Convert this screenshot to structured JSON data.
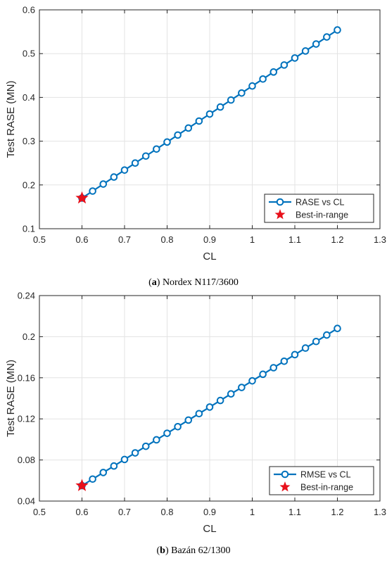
{
  "chart_data": [
    {
      "type": "line",
      "xlabel": "CL",
      "ylabel": "Test RASE (MN)",
      "xlim": [
        0.5,
        1.3
      ],
      "ylim": [
        0.1,
        0.6
      ],
      "xticks": [
        0.5,
        0.6,
        0.7,
        0.8,
        0.9,
        1,
        1.1,
        1.2,
        1.3
      ],
      "xtick_labels": [
        "0.5",
        "0.6",
        "0.7",
        "0.8",
        "0.9",
        "1",
        "1.1",
        "1.2",
        "1.3"
      ],
      "yticks": [
        0.1,
        0.2,
        0.3,
        0.4,
        0.5,
        0.6
      ],
      "ytick_labels": [
        "0.1",
        "0.2",
        "0.3",
        "0.4",
        "0.5",
        "0.6"
      ],
      "grid": true,
      "legend_position": "bottom-right",
      "series": [
        {
          "name": "RASE vs CL",
          "marker": "circle",
          "color": "#0072BD",
          "x": [
            0.6,
            0.625,
            0.65,
            0.675,
            0.7,
            0.725,
            0.75,
            0.775,
            0.8,
            0.825,
            0.85,
            0.875,
            0.9,
            0.925,
            0.95,
            0.975,
            1.0,
            1.025,
            1.05,
            1.075,
            1.1,
            1.125,
            1.15,
            1.175,
            1.2
          ],
          "y": [
            0.17,
            0.186,
            0.202,
            0.218,
            0.234,
            0.25,
            0.266,
            0.282,
            0.298,
            0.314,
            0.33,
            0.346,
            0.362,
            0.378,
            0.394,
            0.41,
            0.426,
            0.442,
            0.458,
            0.474,
            0.49,
            0.506,
            0.522,
            0.538,
            0.554
          ]
        },
        {
          "name": "Best-in-range",
          "marker": "star",
          "color": "#E8101A",
          "x": [
            0.6
          ],
          "y": [
            0.17
          ]
        }
      ]
    },
    {
      "type": "line",
      "xlabel": "CL",
      "ylabel": "Test RASE (MN)",
      "xlim": [
        0.5,
        1.3
      ],
      "ylim": [
        0.04,
        0.24
      ],
      "xticks": [
        0.5,
        0.6,
        0.7,
        0.8,
        0.9,
        1,
        1.1,
        1.2,
        1.3
      ],
      "xtick_labels": [
        "0.5",
        "0.6",
        "0.7",
        "0.8",
        "0.9",
        "1",
        "1.1",
        "1.2",
        "1.3"
      ],
      "yticks": [
        0.04,
        0.08,
        0.12,
        0.16,
        0.2,
        0.24
      ],
      "ytick_labels": [
        "0.04",
        "0.08",
        "0.12",
        "0.16",
        "0.2",
        "0.24"
      ],
      "grid": true,
      "legend_position": "bottom-right",
      "series": [
        {
          "name": "RMSE vs CL",
          "marker": "circle",
          "color": "#0072BD",
          "x": [
            0.6,
            0.625,
            0.65,
            0.675,
            0.7,
            0.725,
            0.75,
            0.775,
            0.8,
            0.825,
            0.85,
            0.875,
            0.9,
            0.925,
            0.95,
            0.975,
            1.0,
            1.025,
            1.05,
            1.075,
            1.1,
            1.125,
            1.15,
            1.175,
            1.2
          ],
          "y": [
            0.055,
            0.0614,
            0.0678,
            0.0741,
            0.0805,
            0.0869,
            0.0933,
            0.0996,
            0.106,
            0.1124,
            0.1188,
            0.1251,
            0.1315,
            0.1379,
            0.1443,
            0.1506,
            0.157,
            0.1634,
            0.1698,
            0.1761,
            0.1825,
            0.1889,
            0.1953,
            0.2016,
            0.208
          ]
        },
        {
          "name": "Best-in-range",
          "marker": "star",
          "color": "#E8101A",
          "x": [
            0.6
          ],
          "y": [
            0.055
          ]
        }
      ]
    }
  ],
  "captions": [
    {
      "letter": "a",
      "text": " Nordex N117/3600"
    },
    {
      "letter": "b",
      "text": " Bazán 62/1300"
    }
  ]
}
